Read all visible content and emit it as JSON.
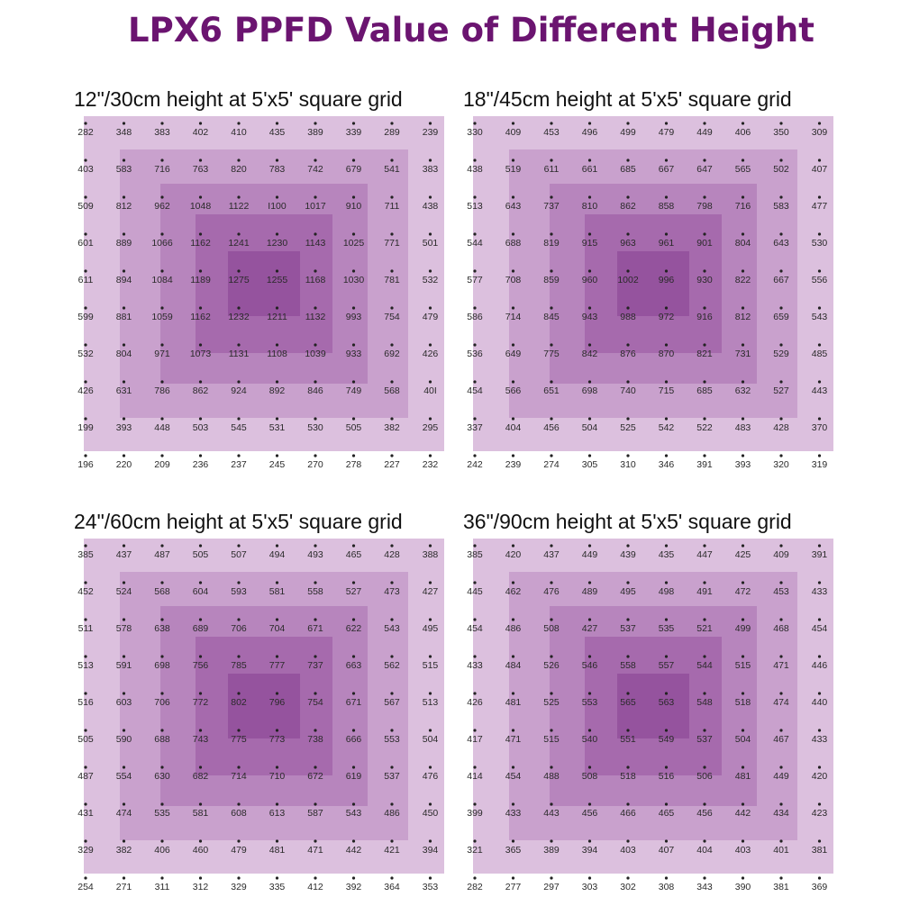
{
  "title": "LPX6 PPFD Value of Different Height",
  "colors": {
    "title": "#6b1470",
    "shade_levels": [
      "#dcc0de",
      "#c9a1cd",
      "#b785bd",
      "#a66aad",
      "#95539e"
    ]
  },
  "chart_data": [
    {
      "type": "heatmap",
      "title": "12\"/30cm height at 5'x5' square grid",
      "grid": [
        [
          "282",
          "348",
          "383",
          "402",
          "410",
          "435",
          "389",
          "339",
          "289",
          "239"
        ],
        [
          "403",
          "583",
          "716",
          "763",
          "820",
          "783",
          "742",
          "679",
          "541",
          "383"
        ],
        [
          "509",
          "812",
          "962",
          "1048",
          "1122",
          "I100",
          "1017",
          "910",
          "711",
          "438"
        ],
        [
          "601",
          "889",
          "1066",
          "1162",
          "1241",
          "1230",
          "1143",
          "1025",
          "771",
          "501"
        ],
        [
          "611",
          "894",
          "1084",
          "1189",
          "1275",
          "1255",
          "1168",
          "1030",
          "781",
          "532"
        ],
        [
          "599",
          "881",
          "1059",
          "1162",
          "1232",
          "1211",
          "1132",
          "993",
          "754",
          "479"
        ],
        [
          "532",
          "804",
          "971",
          "1073",
          "1131",
          "1108",
          "1039",
          "933",
          "692",
          "426"
        ],
        [
          "426",
          "631",
          "786",
          "862",
          "924",
          "892",
          "846",
          "749",
          "568",
          "40I"
        ],
        [
          "199",
          "393",
          "448",
          "503",
          "545",
          "531",
          "530",
          "505",
          "382",
          "295"
        ],
        [
          "196",
          "220",
          "209",
          "236",
          "237",
          "245",
          "270",
          "278",
          "227",
          "232"
        ]
      ]
    },
    {
      "type": "heatmap",
      "title": "18\"/45cm height at 5'x5' square grid",
      "grid": [
        [
          "330",
          "409",
          "453",
          "496",
          "499",
          "479",
          "449",
          "406",
          "350",
          "309"
        ],
        [
          "438",
          "519",
          "611",
          "661",
          "685",
          "667",
          "647",
          "565",
          "502",
          "407"
        ],
        [
          "513",
          "643",
          "737",
          "810",
          "862",
          "858",
          "798",
          "716",
          "583",
          "477"
        ],
        [
          "544",
          "688",
          "819",
          "915",
          "963",
          "961",
          "901",
          "804",
          "643",
          "530"
        ],
        [
          "577",
          "708",
          "859",
          "960",
          "1002",
          "996",
          "930",
          "822",
          "667",
          "556"
        ],
        [
          "586",
          "714",
          "845",
          "943",
          "988",
          "972",
          "916",
          "812",
          "659",
          "543"
        ],
        [
          "536",
          "649",
          "775",
          "842",
          "876",
          "870",
          "821",
          "731",
          "529",
          "485"
        ],
        [
          "454",
          "566",
          "651",
          "698",
          "740",
          "715",
          "685",
          "632",
          "527",
          "443"
        ],
        [
          "337",
          "404",
          "456",
          "504",
          "525",
          "542",
          "522",
          "483",
          "428",
          "370"
        ],
        [
          "242",
          "239",
          "274",
          "305",
          "310",
          "346",
          "391",
          "393",
          "320",
          "319"
        ]
      ]
    },
    {
      "type": "heatmap",
      "title": "24\"/60cm height at 5'x5' square grid",
      "grid": [
        [
          "385",
          "437",
          "487",
          "505",
          "507",
          "494",
          "493",
          "465",
          "428",
          "388"
        ],
        [
          "452",
          "524",
          "568",
          "604",
          "593",
          "581",
          "558",
          "527",
          "473",
          "427"
        ],
        [
          "511",
          "578",
          "638",
          "689",
          "706",
          "704",
          "671",
          "622",
          "543",
          "495"
        ],
        [
          "513",
          "591",
          "698",
          "756",
          "785",
          "777",
          "737",
          "663",
          "562",
          "515"
        ],
        [
          "516",
          "603",
          "706",
          "772",
          "802",
          "796",
          "754",
          "671",
          "567",
          "513"
        ],
        [
          "505",
          "590",
          "688",
          "743",
          "775",
          "773",
          "738",
          "666",
          "553",
          "504"
        ],
        [
          "487",
          "554",
          "630",
          "682",
          "714",
          "710",
          "672",
          "619",
          "537",
          "476"
        ],
        [
          "431",
          "474",
          "535",
          "581",
          "608",
          "613",
          "587",
          "543",
          "486",
          "450"
        ],
        [
          "329",
          "382",
          "406",
          "460",
          "479",
          "481",
          "471",
          "442",
          "421",
          "394"
        ],
        [
          "254",
          "271",
          "311",
          "312",
          "329",
          "335",
          "412",
          "392",
          "364",
          "353"
        ]
      ]
    },
    {
      "type": "heatmap",
      "title": "36\"/90cm height at 5'x5' square grid",
      "grid": [
        [
          "385",
          "420",
          "437",
          "449",
          "439",
          "435",
          "447",
          "425",
          "409",
          "391"
        ],
        [
          "445",
          "462",
          "476",
          "489",
          "495",
          "498",
          "491",
          "472",
          "453",
          "433"
        ],
        [
          "454",
          "486",
          "508",
          "427",
          "537",
          "535",
          "521",
          "499",
          "468",
          "454"
        ],
        [
          "433",
          "484",
          "526",
          "546",
          "558",
          "557",
          "544",
          "515",
          "471",
          "446"
        ],
        [
          "426",
          "481",
          "525",
          "553",
          "565",
          "563",
          "548",
          "518",
          "474",
          "440"
        ],
        [
          "417",
          "471",
          "515",
          "540",
          "551",
          "549",
          "537",
          "504",
          "467",
          "433"
        ],
        [
          "414",
          "454",
          "488",
          "508",
          "518",
          "516",
          "506",
          "481",
          "449",
          "420"
        ],
        [
          "399",
          "433",
          "443",
          "456",
          "466",
          "465",
          "456",
          "442",
          "434",
          "423"
        ],
        [
          "321",
          "365",
          "389",
          "394",
          "403",
          "407",
          "404",
          "403",
          "401",
          "381"
        ],
        [
          "282",
          "277",
          "297",
          "303",
          "302",
          "308",
          "343",
          "390",
          "381",
          "369"
        ]
      ]
    }
  ]
}
